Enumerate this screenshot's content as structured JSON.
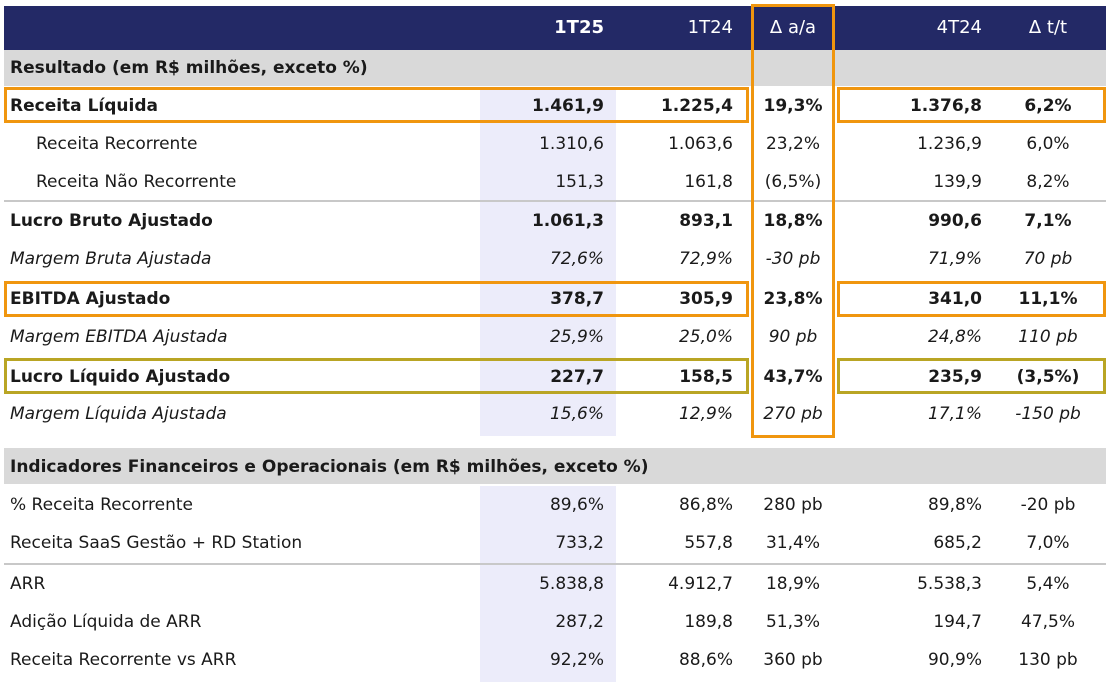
{
  "header": {
    "col1": "1T25",
    "col2": "1T24",
    "col3": "Δ a/a",
    "col4": "4T24",
    "col5": "Δ t/t"
  },
  "section1": {
    "title": "Resultado (em R$ milhões, exceto %)",
    "rows": [
      {
        "label": "Receita Líquida",
        "v1": "1.461,9",
        "v2": "1.225,4",
        "v3": "19,3%",
        "v4": "1.376,8",
        "v5": "6,2%"
      },
      {
        "label": "Receita Recorrente",
        "v1": "1.310,6",
        "v2": "1.063,6",
        "v3": "23,2%",
        "v4": "1.236,9",
        "v5": "6,0%"
      },
      {
        "label": "Receita Não Recorrente",
        "v1": "151,3",
        "v2": "161,8",
        "v3": "(6,5%)",
        "v4": "139,9",
        "v5": "8,2%"
      },
      {
        "label": "Lucro Bruto Ajustado",
        "v1": "1.061,3",
        "v2": "893,1",
        "v3": "18,8%",
        "v4": "990,6",
        "v5": "7,1%"
      },
      {
        "label": "Margem Bruta Ajustada",
        "v1": "72,6%",
        "v2": "72,9%",
        "v3": "-30 pb",
        "v4": "71,9%",
        "v5": "70 pb"
      },
      {
        "label": "EBITDA Ajustado",
        "v1": "378,7",
        "v2": "305,9",
        "v3": "23,8%",
        "v4": "341,0",
        "v5": "11,1%"
      },
      {
        "label": "Margem EBITDA Ajustada",
        "v1": "25,9%",
        "v2": "25,0%",
        "v3": "90 pb",
        "v4": "24,8%",
        "v5": "110 pb"
      },
      {
        "label": "Lucro Líquido Ajustado",
        "v1": "227,7",
        "v2": "158,5",
        "v3": "43,7%",
        "v4": "235,9",
        "v5": "(3,5%)"
      },
      {
        "label": "Margem Líquida Ajustada",
        "v1": "15,6%",
        "v2": "12,9%",
        "v3": "270 pb",
        "v4": "17,1%",
        "v5": "-150 pb"
      }
    ]
  },
  "section2": {
    "title": "Indicadores Financeiros e Operacionais (em R$ milhões, exceto %)",
    "rows": [
      {
        "label": "% Receita Recorrente",
        "v1": "89,6%",
        "v2": "86,8%",
        "v3": "280 pb",
        "v4": "89,8%",
        "v5": "-20 pb"
      },
      {
        "label": "Receita SaaS Gestão + RD Station",
        "v1": "733,2",
        "v2": "557,8",
        "v3": "31,4%",
        "v4": "685,2",
        "v5": "7,0%"
      },
      {
        "label": "ARR",
        "v1": "5.838,8",
        "v2": "4.912,7",
        "v3": "18,9%",
        "v4": "5.538,3",
        "v5": "5,4%"
      },
      {
        "label": "Adição Líquida de ARR",
        "v1": "287,2",
        "v2": "189,8",
        "v3": "51,3%",
        "v4": "194,7",
        "v5": "47,5%"
      },
      {
        "label": "Receita Recorrente vs ARR",
        "v1": "92,2%",
        "v2": "88,6%",
        "v3": "360 pb",
        "v4": "90,9%",
        "v5": "130 pb"
      }
    ]
  },
  "colors": {
    "header_bg": "#232966",
    "section_bg": "#d9d9d9",
    "highlight_orange": "#f0960f",
    "highlight_olive": "#b9a524",
    "current_column_bg": "#ececfa"
  }
}
